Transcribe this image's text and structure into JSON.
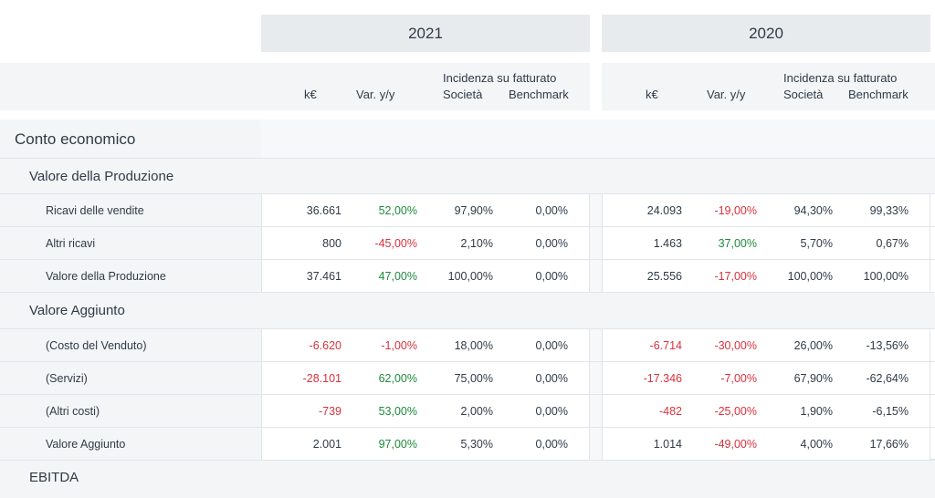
{
  "years": [
    "2021",
    "2020"
  ],
  "columns": {
    "ke": "k€",
    "var": "Var. y/y",
    "incidence": "Incidenza su fatturato",
    "company": "Società",
    "benchmark": "Benchmark"
  },
  "sections": {
    "main": "Conto economico",
    "vp": "Valore della Produzione",
    "va": "Valore Aggiunto",
    "ebitda": "EBITDA"
  },
  "rows": [
    {
      "label": "Ricavi delle vendite",
      "y2021": {
        "ke": "36.661",
        "var": "52,00%",
        "soc": "97,90%",
        "bm": "0,00%"
      },
      "y2020": {
        "ke": "24.093",
        "var": "-19,00%",
        "soc": "94,30%",
        "bm": "99,33%"
      }
    },
    {
      "label": "Altri ricavi",
      "y2021": {
        "ke": "800",
        "var": "-45,00%",
        "soc": "2,10%",
        "bm": "0,00%"
      },
      "y2020": {
        "ke": "1.463",
        "var": "37,00%",
        "soc": "5,70%",
        "bm": "0,67%"
      }
    },
    {
      "label": "Valore della Produzione",
      "y2021": {
        "ke": "37.461",
        "var": "47,00%",
        "soc": "100,00%",
        "bm": "0,00%"
      },
      "y2020": {
        "ke": "25.556",
        "var": "-17,00%",
        "soc": "100,00%",
        "bm": "100,00%"
      }
    },
    {
      "label": "(Costo del Venduto)",
      "y2021": {
        "ke": "-6.620",
        "var": "-1,00%",
        "soc": "18,00%",
        "bm": "0,00%"
      },
      "y2020": {
        "ke": "-6.714",
        "var": "-30,00%",
        "soc": "26,00%",
        "bm": "-13,56%"
      }
    },
    {
      "label": "(Servizi)",
      "y2021": {
        "ke": "-28.101",
        "var": "62,00%",
        "soc": "75,00%",
        "bm": "0,00%"
      },
      "y2020": {
        "ke": "-17.346",
        "var": "-7,00%",
        "soc": "67,90%",
        "bm": "-62,64%"
      }
    },
    {
      "label": "(Altri costi)",
      "y2021": {
        "ke": "-739",
        "var": "53,00%",
        "soc": "2,00%",
        "bm": "0,00%"
      },
      "y2020": {
        "ke": "-482",
        "var": "-25,00%",
        "soc": "1,90%",
        "bm": "-6,15%"
      }
    },
    {
      "label": "Valore Aggiunto",
      "y2021": {
        "ke": "2.001",
        "var": "97,00%",
        "soc": "5,30%",
        "bm": "0,00%"
      },
      "y2020": {
        "ke": "1.014",
        "var": "-49,00%",
        "soc": "4,00%",
        "bm": "17,66%"
      }
    }
  ],
  "colors": {
    "positive": "#1e8a3c",
    "negative": "#d8323c",
    "neutral": "#2f3b47",
    "header_bg": "#e8ebee",
    "row_bg": "#f3f5f7"
  }
}
